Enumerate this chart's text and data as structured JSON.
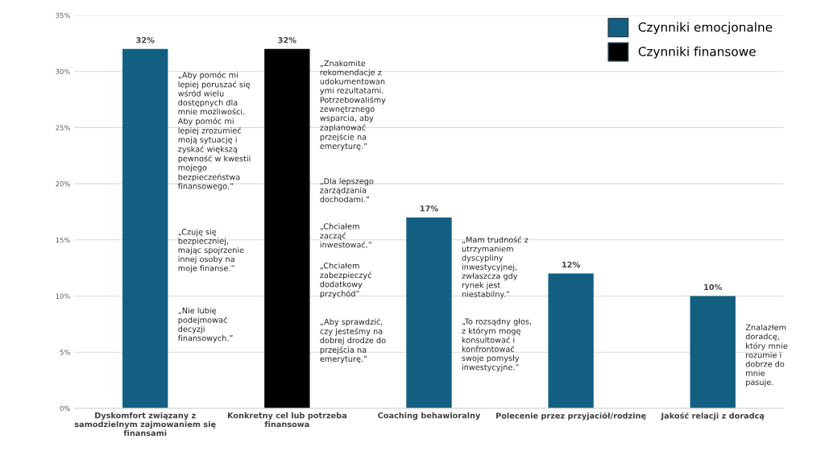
{
  "chart_data": {
    "type": "bar",
    "categories": [
      "Dyskomfort związany z\nsamodzielnym zajmowaniem się\nfinansami",
      "Konkretny cel lub potrzeba\nfinansowa",
      "Coaching behawioralny",
      "Polecenie przez przyjaciół/rodzinę",
      "Jakość relacji z doradcą"
    ],
    "series": [
      {
        "name": "Czynniki emocjonalne",
        "color": "#135f82",
        "values": [
          32,
          null,
          17,
          12,
          10
        ],
        "value_labels": [
          "32%",
          null,
          "17%",
          "12%",
          "10%"
        ]
      },
      {
        "name": "Czynniki finansowe",
        "color": "#000000",
        "values": [
          null,
          32,
          null,
          null,
          null
        ],
        "value_labels": [
          null,
          "32%",
          null,
          null,
          null
        ]
      }
    ],
    "ylim": [
      0,
      35
    ],
    "yticks": [
      {
        "value": 0,
        "label": "0%"
      },
      {
        "value": 5,
        "label": "5%"
      },
      {
        "value": 10,
        "label": "10%"
      },
      {
        "value": 15,
        "label": "15%"
      },
      {
        "value": 20,
        "label": "20%"
      },
      {
        "value": 25,
        "label": "25%"
      },
      {
        "value": 30,
        "label": "30%"
      },
      {
        "value": 35,
        "label": "35%"
      }
    ],
    "grid": "y",
    "legend": "top right",
    "annotations": [
      "„Aby pomóc mi\nlepiej poruszać się\nwśród wielu\ndostępnych dla\nmnie możliwości.\nAby pomóc mi\nlepiej zrozumieć\nmoją sytuację i\nzyskać większą\npewność w kwestii\nmojego\nbezpieczeństwa\nfinansowego.”",
      "„Czuję się\nbezpieczniej,\nmając spojrzenie\ninnej osoby na\nmoje finanse.”",
      "„Nie lubię\npodejmować\ndecyzji\nfinansowych.”",
      "„Znakomite\nrekomendacje z\nudokumentowan\nymi rezultatami.\nPotrzebowaliśmy\nzewnętrznego\nwsparcia, aby\nzaplanować\nprzejście na\nemeryturę.”",
      "„Dla lepszego\nzarządzania\ndochodami.”",
      "„Chciałem\nzacząć\ninwestować.”",
      "„Chciałem\nzabezpieczyć\ndodatkowy\nprzychód”",
      "„Aby sprawdzić,\nczy jesteśmy na\ndobrej drodze do\nprzejścia na\nemeryturę.”",
      "„Mam trudność z\nutrzymaniem\ndyscypliny\ninwestycyjnej,\nzwłaszcza gdy\nrynek jest\nniestabilny.”",
      "„To rozsądny głos,\nz którym mogę\nkonsultować i\nkonfrontować\nswoje pomysły\ninwestycyjne.”",
      "Znalazłem\ndoradcę,\nktóry mnie\nrozumie i\ndobrze do\nmnie\npasuje."
    ]
  }
}
